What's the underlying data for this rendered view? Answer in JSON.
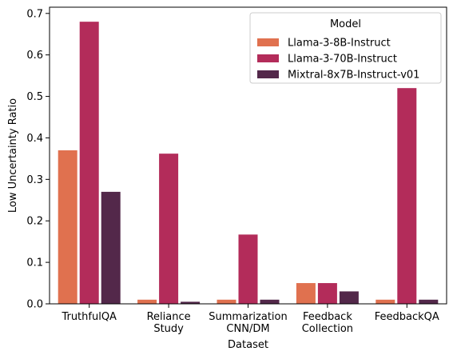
{
  "chart_data": {
    "type": "bar",
    "xlabel": "Dataset",
    "ylabel": "Low Uncertainty Ratio",
    "ylim": [
      0,
      0.715
    ],
    "yticks": [
      "0.0",
      "0.1",
      "0.2",
      "0.3",
      "0.4",
      "0.5",
      "0.6",
      "0.7"
    ],
    "categories": [
      [
        "TruthfulQA"
      ],
      [
        "Reliance",
        "Study"
      ],
      [
        "Summarization",
        "CNN/DM"
      ],
      [
        "Feedback",
        "Collection"
      ],
      [
        "FeedbackQA"
      ]
    ],
    "legend": {
      "title": "Model",
      "placement": "top-right"
    },
    "series": [
      {
        "name": "Llama-3-8B-Instruct",
        "color": "#e0714f",
        "values": [
          0.37,
          0.01,
          0.01,
          0.05,
          0.01
        ]
      },
      {
        "name": "Llama-3-70B-Instruct",
        "color": "#b32c5a",
        "values": [
          0.68,
          0.362,
          0.167,
          0.05,
          0.52
        ]
      },
      {
        "name": "Mixtral-8x7B-Instruct-v01",
        "color": "#53284a",
        "values": [
          0.27,
          0.005,
          0.01,
          0.03,
          0.01
        ]
      }
    ]
  }
}
